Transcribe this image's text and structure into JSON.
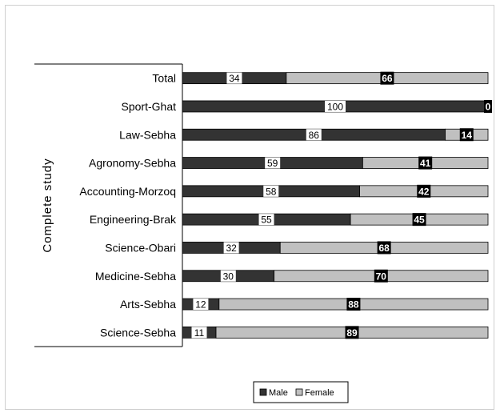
{
  "chart_data": {
    "type": "bar",
    "orientation": "horizontal",
    "stacked": true,
    "percent": true,
    "ylabel": "Complete study",
    "xlabel": "",
    "title": "",
    "xlim": [
      0,
      100
    ],
    "categories": [
      "Total",
      "Sport-Ghat",
      "Law-Sebha",
      "Agronomy-Sebha",
      "Accounting-Morzoq",
      "Engineering-Brak",
      "Science-Obari",
      "Medicine-Sebha",
      "Arts-Sebha",
      "Science-Sebha"
    ],
    "series": [
      {
        "name": "Male",
        "color": "#333333",
        "values": [
          34,
          100,
          86,
          59,
          58,
          55,
          32,
          30,
          12,
          11
        ]
      },
      {
        "name": "Female",
        "color": "#c0c0c0",
        "values": [
          66,
          0,
          14,
          41,
          42,
          45,
          68,
          70,
          88,
          89
        ]
      }
    ],
    "legend_position": "bottom",
    "grid": false
  }
}
